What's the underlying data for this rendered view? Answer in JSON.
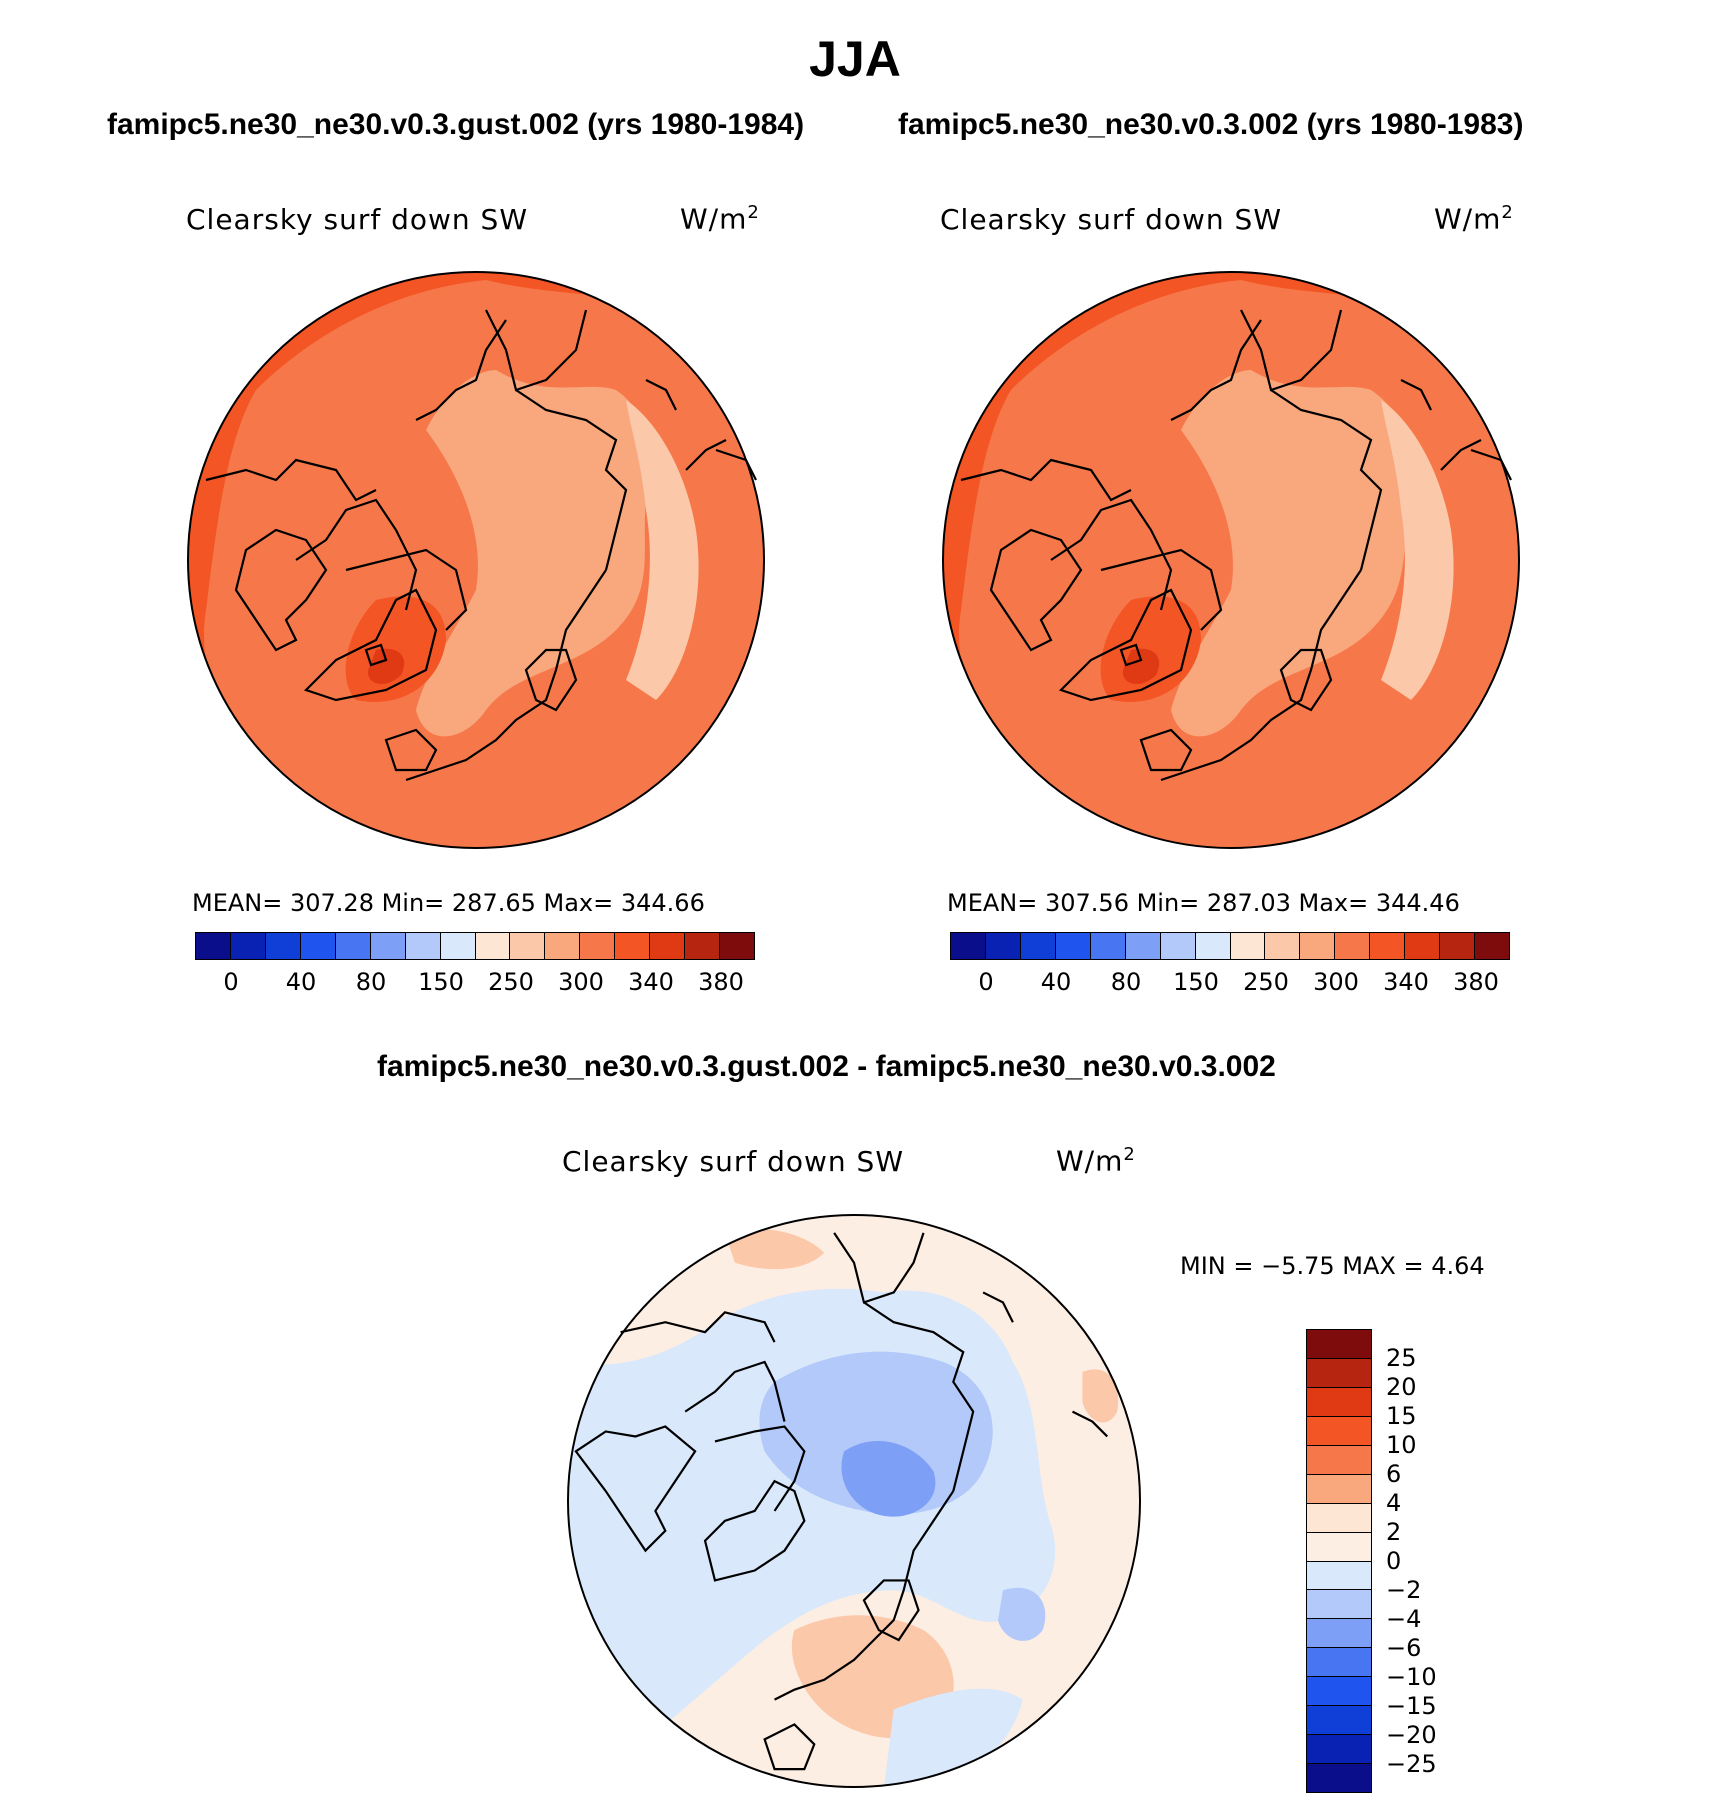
{
  "figure": {
    "season": "JJA",
    "left_case": "famipc5.ne30_ne30.v0.3.gust.002 (yrs 1980-1984)",
    "right_case": "famipc5.ne30_ne30.v0.3.002 (yrs 1980-1983)",
    "diff_title": "famipc5.ne30_ne30.v0.3.gust.002 - famipc5.ne30_ne30.v0.3.002"
  },
  "panels": {
    "left": {
      "variable": "Clearsky surf down SW",
      "units": "W/m",
      "units_exp": "2",
      "stats": "MEAN= 307.28   Min= 287.65   Max= 344.66"
    },
    "right": {
      "variable": "Clearsky surf down SW",
      "units": "W/m",
      "units_exp": "2",
      "stats": "MEAN= 307.56   Min= 287.03   Max= 344.46"
    },
    "diff": {
      "variable": "Clearsky surf down SW",
      "units": "W/m",
      "units_exp": "2",
      "stats": "MIN =   −5.75  MAX =    4.64"
    }
  },
  "colorbars": {
    "abs_colors": [
      "#0b0e8a",
      "#0a22b4",
      "#0f3fd6",
      "#2054ef",
      "#4876f3",
      "#7e9ff6",
      "#b2c9fa",
      "#d9e8fb",
      "#fde6d4",
      "#fbc8aa",
      "#f9a77d",
      "#f6784a",
      "#f35525",
      "#e03a14",
      "#b62510",
      "#7f0c0c"
    ],
    "abs_labels": [
      "0",
      "40",
      "80",
      "150",
      "250",
      "300",
      "340",
      "380"
    ],
    "diff_colors": [
      "#7f0c0c",
      "#b62510",
      "#e03a14",
      "#f35525",
      "#f6784a",
      "#f9a77d",
      "#fde6d4",
      "#fdeee3",
      "#d9e8fb",
      "#b2c9fa",
      "#7e9ff6",
      "#4876f3",
      "#2054ef",
      "#0f3fd6",
      "#0a22b4",
      "#0b0e8a"
    ],
    "diff_labels": [
      "25",
      "20",
      "15",
      "10",
      "6",
      "4",
      "2",
      "0",
      "−2",
      "−4",
      "−6",
      "−10",
      "−15",
      "−20",
      "−25"
    ]
  },
  "map_colors": {
    "abs_high": "#f6784a",
    "abs_mid": "#f9a77d",
    "abs_low": "#fbc8aa",
    "abs_max": "#f35525",
    "abs_peak": "#e03a14",
    "diff_pos_small": "#fdeee3",
    "diff_pos": "#fbc8aa",
    "diff_neg_small": "#d9e8fb",
    "diff_neg": "#b2c9fa",
    "diff_neg_more": "#7e9ff6"
  }
}
